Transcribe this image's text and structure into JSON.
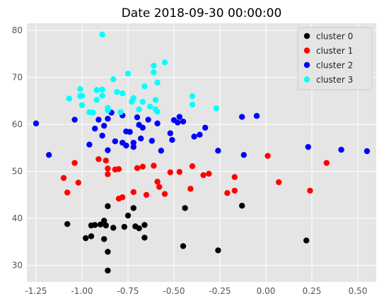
{
  "chart_data": {
    "type": "scatter",
    "title": "Date 2018-09-30 00:00:00",
    "xlabel": "",
    "ylabel": "",
    "xlim": [
      -1.3,
      0.6
    ],
    "ylim": [
      26.5,
      81.5
    ],
    "xticks": [
      "-1.25",
      "-1.00",
      "-0.75",
      "-0.50",
      "-0.25",
      "0.00",
      "0.25",
      "0.50"
    ],
    "yticks": [
      "30",
      "40",
      "50",
      "60",
      "70",
      "80"
    ],
    "grid": true,
    "legend_position": "top-right",
    "series": [
      {
        "name": "cluster 0",
        "color": "#000000",
        "points": [
          [
            -0.86,
            28.9
          ],
          [
            -0.86,
            32.9
          ],
          [
            -0.88,
            35.6
          ],
          [
            -0.83,
            38.0
          ],
          [
            -0.86,
            42.6
          ],
          [
            -0.93,
            38.6
          ],
          [
            -0.95,
            36.2
          ],
          [
            -0.95,
            38.5
          ],
          [
            -0.98,
            35.8
          ],
          [
            -0.88,
            39.5
          ],
          [
            -0.9,
            38.7
          ],
          [
            -0.77,
            38.2
          ],
          [
            -0.75,
            40.6
          ],
          [
            -0.72,
            42.2
          ],
          [
            -0.71,
            38.3
          ],
          [
            -0.69,
            37.9
          ],
          [
            -0.66,
            38.6
          ],
          [
            -0.66,
            35.9
          ],
          [
            -1.08,
            38.8
          ],
          [
            -0.87,
            38.5
          ],
          [
            -0.45,
            34.1
          ],
          [
            -0.44,
            42.2
          ],
          [
            -0.26,
            33.2
          ],
          [
            -0.13,
            42.7
          ],
          [
            0.22,
            35.3
          ]
        ]
      },
      {
        "name": "cluster 1",
        "color": "#ff0000",
        "points": [
          [
            -1.1,
            48.6
          ],
          [
            -1.08,
            45.5
          ],
          [
            -1.04,
            51.8
          ],
          [
            -1.02,
            47.6
          ],
          [
            -0.91,
            52.6
          ],
          [
            -0.87,
            52.3
          ],
          [
            -0.86,
            49.4
          ],
          [
            -0.86,
            50.6
          ],
          [
            -0.82,
            50.4
          ],
          [
            -0.8,
            50.5
          ],
          [
            -0.8,
            44.2
          ],
          [
            -0.78,
            44.5
          ],
          [
            -0.72,
            45.6
          ],
          [
            -0.7,
            50.7
          ],
          [
            -0.67,
            51.0
          ],
          [
            -0.65,
            45.0
          ],
          [
            -0.61,
            51.2
          ],
          [
            -0.59,
            47.8
          ],
          [
            -0.58,
            46.7
          ],
          [
            -0.55,
            45.2
          ],
          [
            -0.52,
            49.8
          ],
          [
            -0.47,
            49.9
          ],
          [
            -0.4,
            51.1
          ],
          [
            -0.41,
            46.3
          ],
          [
            -0.34,
            49.2
          ],
          [
            -0.31,
            49.5
          ],
          [
            -0.21,
            45.4
          ],
          [
            -0.17,
            45.9
          ],
          [
            -0.17,
            48.8
          ],
          [
            0.01,
            53.3
          ],
          [
            0.07,
            47.7
          ],
          [
            0.24,
            45.9
          ],
          [
            0.33,
            51.8
          ]
        ]
      },
      {
        "name": "cluster 2",
        "color": "#0000ff",
        "points": [
          [
            -1.25,
            60.2
          ],
          [
            -1.18,
            53.5
          ],
          [
            -1.04,
            61.0
          ],
          [
            -0.96,
            55.7
          ],
          [
            -0.93,
            59.1
          ],
          [
            -0.91,
            61.0
          ],
          [
            -0.89,
            57.6
          ],
          [
            -0.88,
            59.7
          ],
          [
            -0.86,
            61.2
          ],
          [
            -0.86,
            54.5
          ],
          [
            -0.82,
            56.4
          ],
          [
            -0.78,
            56.1
          ],
          [
            -0.76,
            58.5
          ],
          [
            -0.76,
            55.5
          ],
          [
            -0.74,
            58.4
          ],
          [
            -0.72,
            56.1
          ],
          [
            -0.72,
            55.2
          ],
          [
            -0.7,
            61.5
          ],
          [
            -0.69,
            59.9
          ],
          [
            -0.68,
            57.0
          ],
          [
            -0.67,
            59.3
          ],
          [
            -0.64,
            61.0
          ],
          [
            -0.62,
            56.5
          ],
          [
            -0.59,
            60.2
          ],
          [
            -0.57,
            54.4
          ],
          [
            -0.52,
            58.1
          ],
          [
            -0.51,
            56.7
          ],
          [
            -0.5,
            60.9
          ],
          [
            -0.48,
            60.4
          ],
          [
            -0.47,
            61.6
          ],
          [
            -0.45,
            60.6
          ],
          [
            -0.39,
            57.4
          ],
          [
            -0.36,
            57.8
          ],
          [
            -0.33,
            59.3
          ],
          [
            -0.26,
            54.4
          ],
          [
            -0.13,
            61.6
          ],
          [
            -0.12,
            53.5
          ],
          [
            -0.05,
            61.8
          ],
          [
            0.23,
            55.2
          ],
          [
            0.41,
            54.6
          ],
          [
            0.55,
            54.3
          ],
          [
            -0.78,
            61.9
          ],
          [
            -0.84,
            62.5
          ]
        ]
      },
      {
        "name": "cluster 3",
        "color": "#00ffff",
        "points": [
          [
            -0.89,
            79.1
          ],
          [
            -1.07,
            65.5
          ],
          [
            -1.01,
            67.5
          ],
          [
            -1.0,
            66.1
          ],
          [
            -1.0,
            64.1
          ],
          [
            -0.96,
            62.6
          ],
          [
            -0.94,
            62.5
          ],
          [
            -0.92,
            67.3
          ],
          [
            -0.92,
            65.2
          ],
          [
            -0.89,
            67.4
          ],
          [
            -0.89,
            66.1
          ],
          [
            -0.86,
            63.5
          ],
          [
            -0.86,
            63.0
          ],
          [
            -0.83,
            69.6
          ],
          [
            -0.81,
            66.9
          ],
          [
            -0.79,
            62.6
          ],
          [
            -0.78,
            66.6
          ],
          [
            -0.75,
            70.8
          ],
          [
            -0.73,
            64.8
          ],
          [
            -0.72,
            65.6
          ],
          [
            -0.69,
            63.2
          ],
          [
            -0.67,
            64.8
          ],
          [
            -0.66,
            68.1
          ],
          [
            -0.63,
            63.8
          ],
          [
            -0.61,
            71.1
          ],
          [
            -0.61,
            72.5
          ],
          [
            -0.6,
            65.2
          ],
          [
            -0.6,
            63.2
          ],
          [
            -0.59,
            62.7
          ],
          [
            -0.59,
            68.9
          ],
          [
            -0.55,
            73.2
          ],
          [
            -0.4,
            66.0
          ],
          [
            -0.4,
            64.2
          ],
          [
            -0.27,
            63.4
          ],
          [
            -1.01,
            66.0
          ]
        ]
      }
    ]
  }
}
